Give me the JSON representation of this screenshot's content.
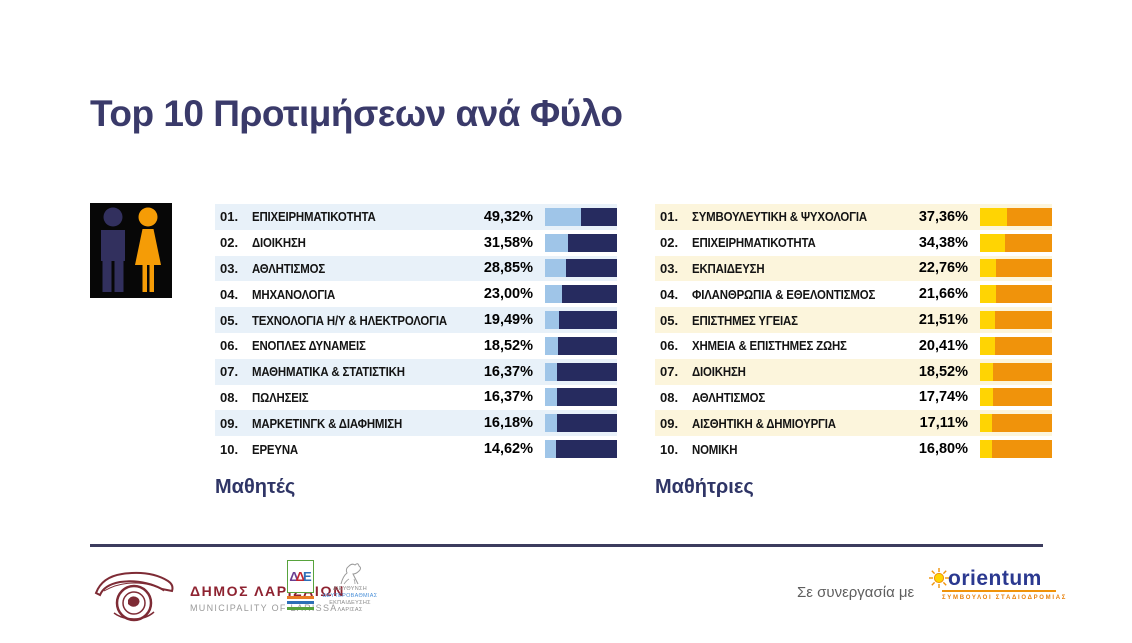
{
  "slide": {
    "title": "Top 10 Προτιμήσεων ανά Φύλο",
    "partnership_label": "Σε συνεργασία με"
  },
  "colors": {
    "title_navy": "#3A3A6A",
    "male_bar_dark": "#262B5F",
    "male_bar_light": "#9FC5E8",
    "male_row_shade": "#E8F1F9",
    "female_bar_dark": "#F0930B",
    "female_bar_light": "#FFD403",
    "female_row_shade": "#FCF5DC",
    "divider": "#3C3C5E",
    "larissa_maroon": "#8E2230",
    "orientum_blue": "#2B3990",
    "orientum_orange": "#F0930B"
  },
  "icons": {
    "gender": "male-female-pictogram",
    "orientum_sun": "sun-with-rays",
    "larissa": "municipality-emblem-horse",
    "dde_horse": "horse-sketch"
  },
  "lists": {
    "male": {
      "caption": "Μαθητές",
      "items": [
        {
          "rank": "01.",
          "label": "ΕΠΙΧΕΙΡΗΜΑΤΙΚΟΤΗΤΑ",
          "value": "49,32%",
          "pct": 49.32
        },
        {
          "rank": "02.",
          "label": "ΔΙΟΙΚΗΣΗ",
          "value": "31,58%",
          "pct": 31.58
        },
        {
          "rank": "03.",
          "label": "ΑΘΛΗΤΙΣΜΟΣ",
          "value": "28,85%",
          "pct": 28.85
        },
        {
          "rank": "04.",
          "label": "ΜΗΧΑΝΟΛΟΓΙΑ",
          "value": "23,00%",
          "pct": 23.0
        },
        {
          "rank": "05.",
          "label": "ΤΕΧΝΟΛΟΓΙΑ Η/Υ & ΗΛΕΚΤΡΟΛΟΓΙΑ",
          "value": "19,49%",
          "pct": 19.49
        },
        {
          "rank": "06.",
          "label": "ΕΝΟΠΛΕΣ ΔΥΝΑΜΕΙΣ",
          "value": "18,52%",
          "pct": 18.52
        },
        {
          "rank": "07.",
          "label": "ΜΑΘΗΜΑΤΙΚΑ & ΣΤΑΤΙΣΤΙΚΗ",
          "value": "16,37%",
          "pct": 16.37
        },
        {
          "rank": "08.",
          "label": "ΠΩΛΗΣΕΙΣ",
          "value": "16,37%",
          "pct": 16.37
        },
        {
          "rank": "09.",
          "label": "ΜΑΡΚΕΤΙΝΓΚ & ΔΙΑΦΗΜΙΣΗ",
          "value": "16,18%",
          "pct": 16.18
        },
        {
          "rank": "10.",
          "label": "ΕΡΕΥΝΑ",
          "value": "14,62%",
          "pct": 14.62
        }
      ]
    },
    "female": {
      "caption": "Μαθήτριες",
      "items": [
        {
          "rank": "01.",
          "label": "ΣΥΜΒΟΥΛΕΥΤΙΚΗ & ΨΥΧΟΛΟΓΙΑ",
          "value": "37,36%",
          "pct": 37.36
        },
        {
          "rank": "02.",
          "label": "ΕΠΙΧΕΙΡΗΜΑΤΙΚΟΤΗΤΑ",
          "value": "34,38%",
          "pct": 34.38
        },
        {
          "rank": "03.",
          "label": "ΕΚΠΑΙΔΕΥΣΗ",
          "value": "22,76%",
          "pct": 22.76
        },
        {
          "rank": "04.",
          "label": "ΦΙΛΑΝΘΡΩΠΙΑ & ΕΘΕΛΟΝΤΙΣΜΟΣ",
          "value": "21,66%",
          "pct": 21.66
        },
        {
          "rank": "05.",
          "label": "ΕΠΙΣΤΗΜΕΣ ΥΓΕΙΑΣ",
          "value": "21,51%",
          "pct": 21.51
        },
        {
          "rank": "06.",
          "label": "ΧΗΜΕΙΑ & ΕΠΙΣΤΗΜΕΣ ΖΩΗΣ",
          "value": "20,41%",
          "pct": 20.41
        },
        {
          "rank": "07.",
          "label": "ΔΙΟΙΚΗΣΗ",
          "value": "18,52%",
          "pct": 18.52
        },
        {
          "rank": "08.",
          "label": "ΑΘΛΗΤΙΣΜΟΣ",
          "value": "17,74%",
          "pct": 17.74
        },
        {
          "rank": "09.",
          "label": "ΑΙΣΘΗΤΙΚΗ & ΔΗΜΙΟΥΡΓΙΑ",
          "value": "17,11%",
          "pct": 17.11
        },
        {
          "rank": "10.",
          "label": "ΝΟΜΙΚΗ",
          "value": "16,80%",
          "pct": 16.8
        }
      ]
    }
  },
  "footer": {
    "larissa": {
      "title": "ΔΗΜΟΣ ΛΑΡΙΣΑΙΩΝ",
      "subtitle": "MUNICIPALITY OF LARISSA"
    },
    "dde": {
      "block_letters": [
        "Δ",
        "Δ",
        "Ε"
      ],
      "lines": [
        "ΔΙΕΥΘΥΝΣΗ",
        "ΔΕΥΤΕΡΟΒΑΘΜΙΑΣ",
        "ΕΚΠΑΙΔΕΥΣΗΣ",
        "ΛΑΡΙΣΑΣ"
      ]
    },
    "orientum": {
      "name": "orientum",
      "tagline": "ΣΥΜΒΟΥΛΟΙ ΣΤΑΔΙΟΔΡΟΜΙΑΣ"
    }
  },
  "chart_data": [
    {
      "type": "bar",
      "title": "Top 10 Προτιμήσεων ανά Φύλο — Μαθητές",
      "categories": [
        "ΕΠΙΧΕΙΡΗΜΑΤΙΚΟΤΗΤΑ",
        "ΔΙΟΙΚΗΣΗ",
        "ΑΘΛΗΤΙΣΜΟΣ",
        "ΜΗΧΑΝΟΛΟΓΙΑ",
        "ΤΕΧΝΟΛΟΓΙΑ Η/Υ & ΗΛΕΚΤΡΟΛΟΓΙΑ",
        "ΕΝΟΠΛΕΣ ΔΥΝΑΜΕΙΣ",
        "ΜΑΘΗΜΑΤΙΚΑ & ΣΤΑΤΙΣΤΙΚΗ",
        "ΠΩΛΗΣΕΙΣ",
        "ΜΑΡΚΕΤΙΝΓΚ & ΔΙΑΦΗΜΙΣΗ",
        "ΕΡΕΥΝΑ"
      ],
      "values": [
        49.32,
        31.58,
        28.85,
        23.0,
        19.49,
        18.52,
        16.37,
        16.37,
        16.18,
        14.62
      ],
      "unit": "%",
      "xlabel": "",
      "ylabel": "",
      "xlim": [
        0,
        100
      ],
      "orientation": "horizontal",
      "legend": false,
      "grid": false
    },
    {
      "type": "bar",
      "title": "Top 10 Προτιμήσεων ανά Φύλο — Μαθήτριες",
      "categories": [
        "ΣΥΜΒΟΥΛΕΥΤΙΚΗ & ΨΥΧΟΛΟΓΙΑ",
        "ΕΠΙΧΕΙΡΗΜΑΤΙΚΟΤΗΤΑ",
        "ΕΚΠΑΙΔΕΥΣΗ",
        "ΦΙΛΑΝΘΡΩΠΙΑ & ΕΘΕΛΟΝΤΙΣΜΟΣ",
        "ΕΠΙΣΤΗΜΕΣ ΥΓΕΙΑΣ",
        "ΧΗΜΕΙΑ & ΕΠΙΣΤΗΜΕΣ ΖΩΗΣ",
        "ΔΙΟΙΚΗΣΗ",
        "ΑΘΛΗΤΙΣΜΟΣ",
        "ΑΙΣΘΗΤΙΚΗ & ΔΗΜΙΟΥΡΓΙΑ",
        "ΝΟΜΙΚΗ"
      ],
      "values": [
        37.36,
        34.38,
        22.76,
        21.66,
        21.51,
        20.41,
        18.52,
        17.74,
        17.11,
        16.8
      ],
      "unit": "%",
      "xlabel": "",
      "ylabel": "",
      "xlim": [
        0,
        100
      ],
      "orientation": "horizontal",
      "legend": false,
      "grid": false
    }
  ]
}
